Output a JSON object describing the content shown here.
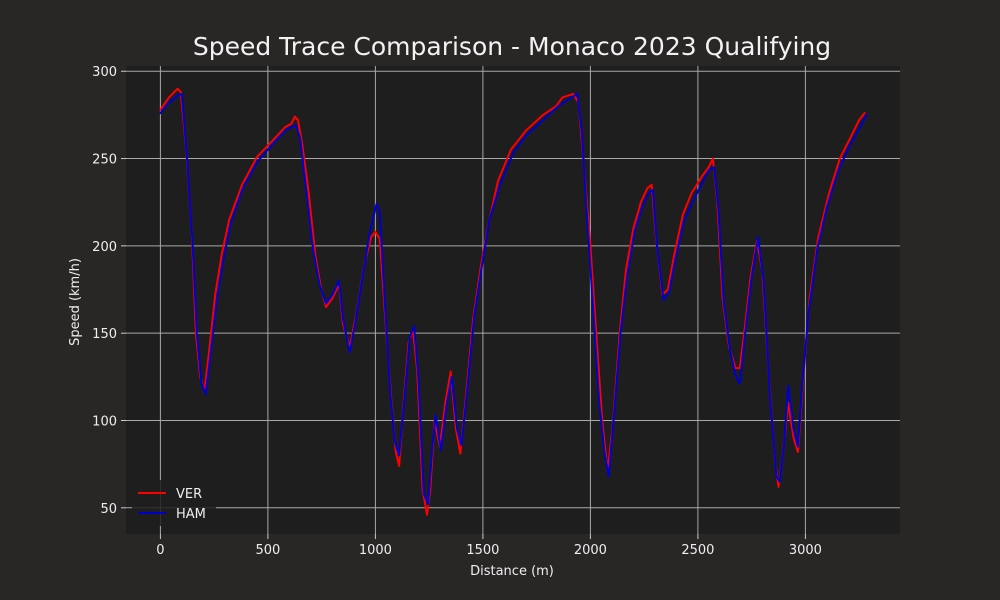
{
  "chart_data": {
    "type": "line",
    "title": "Speed Trace Comparison - Monaco 2023 Qualifying",
    "xlabel": "Distance (m)",
    "ylabel": "Speed (km/h)",
    "xlim": [
      -160,
      3440
    ],
    "ylim": [
      35,
      303
    ],
    "xticks": [
      0,
      500,
      1000,
      1500,
      2000,
      2500,
      3000
    ],
    "yticks": [
      50,
      100,
      150,
      200,
      250,
      300
    ],
    "grid": true,
    "legend_position": "lower-left",
    "colors": {
      "background": "#292626",
      "plot_area": "#1f1e1e",
      "grid": "#a8a8a8"
    },
    "series": [
      {
        "name": "VER",
        "color": "#ff0000",
        "points": [
          [
            0,
            278
          ],
          [
            40,
            285
          ],
          [
            80,
            290
          ],
          [
            95,
            288
          ],
          [
            120,
            255
          ],
          [
            145,
            210
          ],
          [
            165,
            150
          ],
          [
            185,
            125
          ],
          [
            205,
            117
          ],
          [
            225,
            138
          ],
          [
            255,
            172
          ],
          [
            285,
            195
          ],
          [
            320,
            215
          ],
          [
            380,
            235
          ],
          [
            450,
            251
          ],
          [
            520,
            260
          ],
          [
            580,
            268
          ],
          [
            610,
            270
          ],
          [
            625,
            274
          ],
          [
            640,
            272
          ],
          [
            660,
            258
          ],
          [
            690,
            230
          ],
          [
            720,
            195
          ],
          [
            745,
            177
          ],
          [
            770,
            165
          ],
          [
            800,
            170
          ],
          [
            830,
            178
          ],
          [
            850,
            155
          ],
          [
            880,
            142
          ],
          [
            910,
            160
          ],
          [
            950,
            190
          ],
          [
            980,
            205
          ],
          [
            1000,
            208
          ],
          [
            1020,
            204
          ],
          [
            1045,
            160
          ],
          [
            1075,
            110
          ],
          [
            1095,
            82
          ],
          [
            1110,
            74
          ],
          [
            1130,
            108
          ],
          [
            1155,
            145
          ],
          [
            1175,
            152
          ],
          [
            1195,
            128
          ],
          [
            1220,
            60
          ],
          [
            1240,
            46
          ],
          [
            1255,
            60
          ],
          [
            1275,
            100
          ],
          [
            1300,
            85
          ],
          [
            1325,
            110
          ],
          [
            1350,
            128
          ],
          [
            1375,
            95
          ],
          [
            1395,
            81
          ],
          [
            1420,
            112
          ],
          [
            1455,
            158
          ],
          [
            1490,
            188
          ],
          [
            1525,
            212
          ],
          [
            1570,
            237
          ],
          [
            1630,
            255
          ],
          [
            1700,
            266
          ],
          [
            1780,
            275
          ],
          [
            1840,
            280
          ],
          [
            1870,
            285
          ],
          [
            1920,
            287
          ],
          [
            1945,
            282
          ],
          [
            1970,
            245
          ],
          [
            2000,
            200
          ],
          [
            2030,
            145
          ],
          [
            2055,
            100
          ],
          [
            2080,
            71
          ],
          [
            2105,
            98
          ],
          [
            2135,
            148
          ],
          [
            2165,
            186
          ],
          [
            2200,
            210
          ],
          [
            2235,
            225
          ],
          [
            2265,
            233
          ],
          [
            2285,
            235
          ],
          [
            2305,
            205
          ],
          [
            2335,
            172
          ],
          [
            2360,
            175
          ],
          [
            2390,
            195
          ],
          [
            2430,
            218
          ],
          [
            2470,
            230
          ],
          [
            2520,
            240
          ],
          [
            2550,
            245
          ],
          [
            2570,
            250
          ],
          [
            2590,
            225
          ],
          [
            2615,
            170
          ],
          [
            2645,
            142
          ],
          [
            2675,
            130
          ],
          [
            2695,
            130
          ],
          [
            2720,
            155
          ],
          [
            2745,
            182
          ],
          [
            2775,
            203
          ],
          [
            2800,
            185
          ],
          [
            2830,
            125
          ],
          [
            2860,
            75
          ],
          [
            2875,
            62
          ],
          [
            2895,
            80
          ],
          [
            2920,
            110
          ],
          [
            2945,
            90
          ],
          [
            2965,
            82
          ],
          [
            2990,
            125
          ],
          [
            3020,
            170
          ],
          [
            3060,
            205
          ],
          [
            3110,
            230
          ],
          [
            3160,
            250
          ],
          [
            3210,
            262
          ],
          [
            3250,
            272
          ],
          [
            3275,
            276
          ]
        ]
      },
      {
        "name": "HAM",
        "color": "#0000cc",
        "points": [
          [
            0,
            276
          ],
          [
            40,
            282
          ],
          [
            80,
            286
          ],
          [
            100,
            287
          ],
          [
            125,
            248
          ],
          [
            150,
            200
          ],
          [
            170,
            150
          ],
          [
            190,
            122
          ],
          [
            210,
            115
          ],
          [
            230,
            135
          ],
          [
            260,
            167
          ],
          [
            290,
            190
          ],
          [
            325,
            212
          ],
          [
            380,
            232
          ],
          [
            450,
            248
          ],
          [
            520,
            258
          ],
          [
            590,
            267
          ],
          [
            630,
            269
          ],
          [
            650,
            262
          ],
          [
            680,
            230
          ],
          [
            710,
            198
          ],
          [
            740,
            178
          ],
          [
            770,
            167
          ],
          [
            800,
            172
          ],
          [
            830,
            180
          ],
          [
            850,
            158
          ],
          [
            880,
            139
          ],
          [
            905,
            155
          ],
          [
            940,
            182
          ],
          [
            975,
            208
          ],
          [
            1005,
            224
          ],
          [
            1020,
            220
          ],
          [
            1045,
            165
          ],
          [
            1070,
            115
          ],
          [
            1090,
            88
          ],
          [
            1110,
            80
          ],
          [
            1135,
            112
          ],
          [
            1160,
            148
          ],
          [
            1180,
            154
          ],
          [
            1200,
            125
          ],
          [
            1225,
            58
          ],
          [
            1245,
            52
          ],
          [
            1265,
            85
          ],
          [
            1280,
            103
          ],
          [
            1305,
            83
          ],
          [
            1330,
            108
          ],
          [
            1355,
            125
          ],
          [
            1380,
            95
          ],
          [
            1400,
            86
          ],
          [
            1425,
            115
          ],
          [
            1460,
            160
          ],
          [
            1495,
            188
          ],
          [
            1530,
            215
          ],
          [
            1580,
            235
          ],
          [
            1640,
            253
          ],
          [
            1700,
            263
          ],
          [
            1780,
            272
          ],
          [
            1850,
            280
          ],
          [
            1900,
            284
          ],
          [
            1940,
            287
          ],
          [
            1960,
            265
          ],
          [
            1985,
            215
          ],
          [
            2015,
            160
          ],
          [
            2040,
            112
          ],
          [
            2065,
            82
          ],
          [
            2085,
            68
          ],
          [
            2110,
            103
          ],
          [
            2140,
            150
          ],
          [
            2170,
            182
          ],
          [
            2205,
            208
          ],
          [
            2240,
            222
          ],
          [
            2270,
            230
          ],
          [
            2290,
            232
          ],
          [
            2310,
            200
          ],
          [
            2340,
            169
          ],
          [
            2365,
            173
          ],
          [
            2395,
            192
          ],
          [
            2435,
            214
          ],
          [
            2475,
            225
          ],
          [
            2520,
            236
          ],
          [
            2555,
            244
          ],
          [
            2575,
            245
          ],
          [
            2595,
            222
          ],
          [
            2620,
            168
          ],
          [
            2650,
            140
          ],
          [
            2675,
            126
          ],
          [
            2695,
            121
          ],
          [
            2720,
            150
          ],
          [
            2750,
            182
          ],
          [
            2780,
            205
          ],
          [
            2805,
            180
          ],
          [
            2835,
            115
          ],
          [
            2865,
            68
          ],
          [
            2880,
            65
          ],
          [
            2900,
            85
          ],
          [
            2920,
            120
          ],
          [
            2945,
            95
          ],
          [
            2965,
            85
          ],
          [
            2985,
            120
          ],
          [
            3015,
            162
          ],
          [
            3055,
            198
          ],
          [
            3100,
            222
          ],
          [
            3150,
            242
          ],
          [
            3200,
            256
          ],
          [
            3245,
            266
          ],
          [
            3285,
            275
          ]
        ]
      }
    ]
  }
}
